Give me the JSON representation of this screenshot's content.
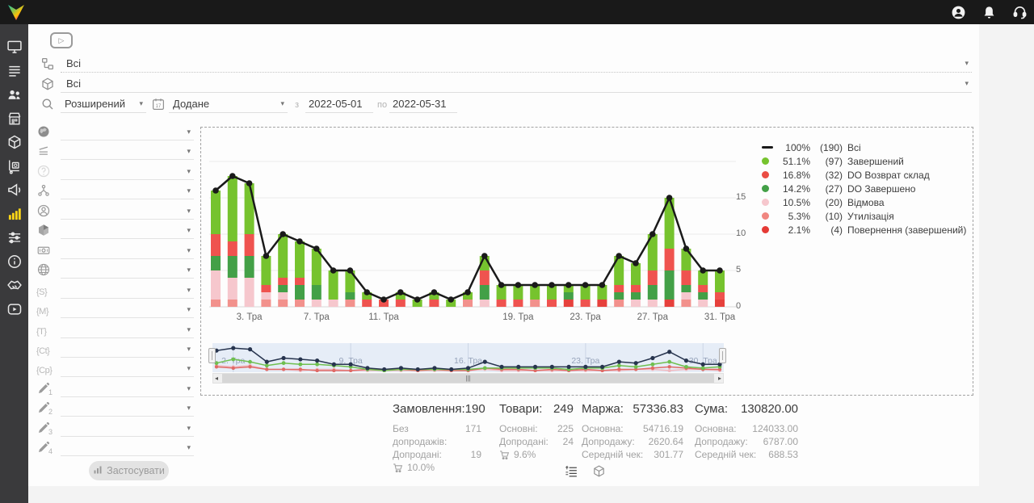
{
  "ui": {
    "dropdown_arrow": "▾",
    "scroll_left": "◂",
    "scroll_right": "▸",
    "scroll_grip": "|||",
    "play_glyph": "▷"
  },
  "topbar": {
    "icons": [
      "user-account",
      "notifications-bell",
      "support-headset"
    ]
  },
  "sidebar": {
    "items": [
      {
        "name": "dashboard",
        "icon": "monitor",
        "active": false
      },
      {
        "name": "orders",
        "icon": "rows",
        "active": false
      },
      {
        "name": "customers",
        "icon": "people",
        "active": false
      },
      {
        "name": "store",
        "icon": "store",
        "active": false
      },
      {
        "name": "products",
        "icon": "package",
        "active": false
      },
      {
        "name": "supply",
        "icon": "handtruck",
        "active": false
      },
      {
        "name": "marketing",
        "icon": "megaphone",
        "active": false
      },
      {
        "name": "analytics",
        "icon": "chart",
        "active": true
      },
      {
        "name": "settings",
        "icon": "sliders",
        "active": false
      },
      {
        "name": "info",
        "icon": "info",
        "active": false
      },
      {
        "name": "partners",
        "icon": "handshake",
        "active": false
      },
      {
        "name": "tutorials",
        "icon": "video",
        "active": false
      }
    ]
  },
  "filters": {
    "row1": {
      "value": "Всі"
    },
    "row2": {
      "value": "Всі"
    },
    "search_mode": "Розширений",
    "date_field": "Додане",
    "from_label": "з",
    "date_from": "2022-05-01",
    "to_label": "по",
    "date_to": "2022-05-31",
    "apply_label": "Застосувати",
    "side_rows": [
      {
        "name": "source",
        "icon": "globe-solid"
      },
      {
        "name": "funnel",
        "icon": "sort-lines"
      },
      {
        "name": "unknown",
        "icon": "question",
        "faded": true
      },
      {
        "name": "structure",
        "icon": "hierarchy"
      },
      {
        "name": "manager",
        "icon": "person"
      },
      {
        "name": "product",
        "icon": "cube"
      },
      {
        "name": "payment",
        "icon": "banknote"
      },
      {
        "name": "site",
        "icon": "globe-wire"
      },
      {
        "name": "marker-s",
        "icon": "brace",
        "text": "{S}"
      },
      {
        "name": "marker-m",
        "icon": "brace",
        "text": "{M}"
      },
      {
        "name": "marker-t",
        "icon": "brace",
        "text": "{T}"
      },
      {
        "name": "marker-ct",
        "icon": "brace",
        "text": "{Ct}"
      },
      {
        "name": "marker-cp",
        "icon": "brace",
        "text": "{Cp}"
      },
      {
        "name": "custom-field-1",
        "icon": "pencil",
        "num": "1"
      },
      {
        "name": "custom-field-2",
        "icon": "pencil",
        "num": "2"
      },
      {
        "name": "custom-field-3",
        "icon": "pencil",
        "num": "3"
      },
      {
        "name": "custom-field-4",
        "icon": "pencil",
        "num": "4"
      }
    ]
  },
  "chart_data": {
    "type": "bar",
    "subtype": "stacked-bars-with-total-line",
    "x_unit": "day of May (Тра) 2022",
    "days": 31,
    "ylim": [
      0,
      20
    ],
    "yticks": [
      0,
      5,
      10,
      15
    ],
    "tick_labels": [
      {
        "day": 3,
        "label": "3. Тра"
      },
      {
        "day": 7,
        "label": "7. Тра"
      },
      {
        "day": 11,
        "label": "11. Тра"
      },
      {
        "day": 19,
        "label": "19. Тра"
      },
      {
        "day": 23,
        "label": "23. Тра"
      },
      {
        "day": 27,
        "label": "27. Тра"
      },
      {
        "day": 31,
        "label": "31. Тра"
      }
    ],
    "line_series": {
      "name": "Всі",
      "color": "#1a1a1a",
      "values": [
        16,
        18,
        17,
        7,
        10,
        9,
        8,
        5,
        5,
        2,
        1,
        2,
        1,
        2,
        1,
        2,
        7,
        3,
        3,
        3,
        3,
        3,
        3,
        3,
        7,
        6,
        10,
        15,
        8,
        5,
        5
      ]
    },
    "stack_order": [
      "return",
      "utilization",
      "refusal",
      "do_completed",
      "do_return",
      "completed"
    ],
    "series": [
      {
        "key": "completed",
        "name": "Завершений",
        "color": "#76c32e",
        "values": [
          6,
          9,
          7,
          4,
          6,
          5,
          5,
          4,
          3,
          1,
          0,
          1,
          1,
          1,
          1,
          1,
          2,
          2,
          2,
          2,
          2,
          1,
          2,
          2,
          4,
          3,
          5,
          7,
          3,
          2,
          3
        ]
      },
      {
        "key": "do_return",
        "name": "DO Возврат склад",
        "color": "#ef534f",
        "values": [
          3,
          2,
          3,
          1,
          1,
          1,
          0,
          0,
          0,
          1,
          1,
          1,
          0,
          1,
          0,
          0,
          2,
          1,
          1,
          0,
          1,
          0,
          1,
          0,
          1,
          1,
          2,
          3,
          2,
          1,
          1
        ]
      },
      {
        "key": "do_completed",
        "name": "DO Завершено",
        "color": "#43a047",
        "values": [
          2,
          3,
          3,
          0,
          1,
          2,
          2,
          0,
          1,
          0,
          0,
          0,
          0,
          0,
          0,
          0,
          2,
          0,
          0,
          0,
          0,
          1,
          0,
          0,
          1,
          1,
          2,
          4,
          1,
          1,
          0
        ]
      },
      {
        "key": "refusal",
        "name": "Відмова",
        "color": "#f6c7cd",
        "values": [
          4,
          3,
          4,
          1,
          1,
          0,
          1,
          1,
          0,
          0,
          0,
          0,
          0,
          0,
          0,
          0,
          1,
          0,
          0,
          0,
          0,
          0,
          0,
          0,
          0,
          1,
          1,
          0,
          1,
          1,
          0
        ]
      },
      {
        "key": "utilization",
        "name": "Утилізація",
        "color": "#f2918c",
        "values": [
          1,
          1,
          0,
          1,
          1,
          1,
          0,
          0,
          1,
          0,
          0,
          0,
          0,
          0,
          0,
          1,
          0,
          0,
          0,
          1,
          0,
          0,
          0,
          0,
          1,
          0,
          0,
          0,
          1,
          0,
          0
        ]
      },
      {
        "key": "return",
        "name": "Повернення (завершений)",
        "color": "#e6413c",
        "values": [
          0,
          0,
          0,
          0,
          0,
          0,
          0,
          0,
          0,
          0,
          0,
          0,
          0,
          0,
          0,
          0,
          0,
          0,
          0,
          0,
          0,
          1,
          0,
          1,
          0,
          0,
          0,
          1,
          0,
          0,
          1
        ]
      }
    ],
    "legend": [
      {
        "marker": "line",
        "color": "#1a1a1a",
        "pct": "100%",
        "count": "(190)",
        "label": "Всі"
      },
      {
        "marker": "dot",
        "color": "#76c32e",
        "pct": "51.1%",
        "count": "(97)",
        "label": "Завершений"
      },
      {
        "marker": "dot",
        "color": "#ea4d44",
        "pct": "16.8%",
        "count": "(32)",
        "label": "DO Возврат склад"
      },
      {
        "marker": "dot",
        "color": "#43a047",
        "pct": "14.2%",
        "count": "(27)",
        "label": "DO Завершено"
      },
      {
        "marker": "dot",
        "color": "#f6c7cd",
        "pct": "10.5%",
        "count": "(20)",
        "label": "Відмова"
      },
      {
        "marker": "dot",
        "color": "#f08680",
        "pct": "5.3%",
        "count": "(10)",
        "label": "Утилізація"
      },
      {
        "marker": "dot",
        "color": "#e53a35",
        "pct": "2.1%",
        "count": "(4)",
        "label": "Повернення (завершений)"
      }
    ],
    "navigator_labels": [
      {
        "day": 2,
        "label": "2. Тра"
      },
      {
        "day": 9,
        "label": "9. Тра"
      },
      {
        "day": 16,
        "label": "16. Тра"
      },
      {
        "day": 23,
        "label": "23. Тра"
      },
      {
        "day": 30,
        "label": "30. Тра"
      }
    ]
  },
  "stats": {
    "columns": [
      {
        "title": "Замовлення:",
        "value": "190",
        "rows": [
          {
            "label": "Без допродажів:",
            "value": "171"
          },
          {
            "label": "Допродані:",
            "value": "19"
          },
          {
            "icon": "cart",
            "label": "",
            "value": "10.0%"
          }
        ]
      },
      {
        "title": "Товари:",
        "value": "249",
        "rows": [
          {
            "label": "Основні:",
            "value": "225"
          },
          {
            "label": "Допродані:",
            "value": "24"
          },
          {
            "icon": "cart",
            "label": "",
            "value": "9.6%"
          }
        ]
      },
      {
        "title": "Маржа:",
        "value": "57336.83",
        "rows": [
          {
            "label": "Основна:",
            "value": "54716.19"
          },
          {
            "label": "Допродажу:",
            "value": "2620.64"
          },
          {
            "label": "Середній чек:",
            "value": "301.77"
          }
        ]
      },
      {
        "title": "Сума:",
        "value": "130820.00",
        "rows": [
          {
            "label": "Основна:",
            "value": "124033.00"
          },
          {
            "label": "Допродажу:",
            "value": "6787.00"
          },
          {
            "label": "Середній чек:",
            "value": "688.53"
          }
        ]
      }
    ]
  }
}
